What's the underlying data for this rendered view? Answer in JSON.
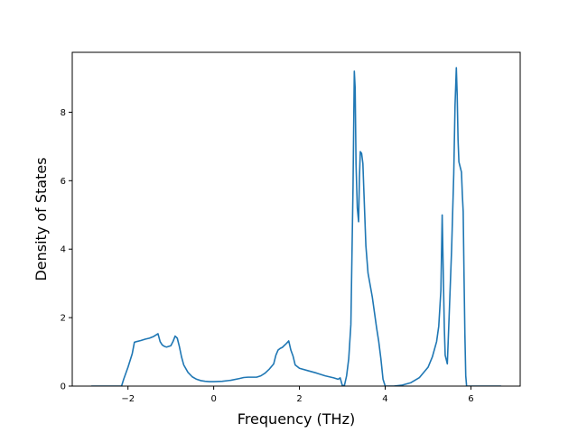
{
  "chart_data": {
    "type": "line",
    "title": "",
    "xlabel": "Frequency (THz)",
    "ylabel": "Density of States",
    "xlim": [
      -3.3,
      7.15
    ],
    "ylim": [
      0,
      9.75
    ],
    "xticks": [
      -2,
      0,
      2,
      4,
      6
    ],
    "yticks": [
      0,
      2,
      4,
      6,
      8
    ],
    "xtick_labels": [
      "−2",
      "0",
      "2",
      "4",
      "6"
    ],
    "ytick_labels": [
      "0",
      "2",
      "4",
      "6",
      "8"
    ],
    "grid": false,
    "legend": null,
    "series": [
      {
        "color": "#1f77b4",
        "x": [
          -2.85,
          -2.5,
          -2.15,
          -2.1,
          -2.0,
          -1.9,
          -1.85,
          -1.8,
          -1.7,
          -1.6,
          -1.5,
          -1.4,
          -1.3,
          -1.25,
          -1.2,
          -1.15,
          -1.1,
          -1.0,
          -0.95,
          -0.9,
          -0.85,
          -0.8,
          -0.75,
          -0.7,
          -0.6,
          -0.5,
          -0.4,
          -0.3,
          -0.2,
          -0.1,
          0.0,
          0.2,
          0.4,
          0.6,
          0.7,
          0.8,
          0.9,
          1.0,
          1.1,
          1.2,
          1.3,
          1.4,
          1.45,
          1.5,
          1.55,
          1.6,
          1.7,
          1.75,
          1.8,
          1.85,
          1.9,
          2.0,
          2.2,
          2.4,
          2.6,
          2.8,
          2.9,
          2.95,
          3.0,
          3.05,
          3.1,
          3.15,
          3.2,
          3.25,
          3.28,
          3.3,
          3.32,
          3.35,
          3.38,
          3.4,
          3.42,
          3.45,
          3.48,
          3.5,
          3.55,
          3.6,
          3.7,
          3.8,
          3.85,
          3.9,
          3.95,
          4.0,
          4.1,
          4.2,
          4.4,
          4.6,
          4.8,
          5.0,
          5.1,
          5.2,
          5.25,
          5.3,
          5.33,
          5.36,
          5.38,
          5.4,
          5.45,
          5.5,
          5.55,
          5.6,
          5.63,
          5.66,
          5.68,
          5.7,
          5.72,
          5.75,
          5.78,
          5.8,
          5.82,
          5.84,
          5.86,
          5.88,
          5.9,
          6.0,
          6.3,
          6.7
        ],
        "y": [
          0,
          0,
          0,
          0.2,
          0.55,
          0.95,
          1.28,
          1.3,
          1.33,
          1.37,
          1.4,
          1.45,
          1.53,
          1.3,
          1.2,
          1.16,
          1.14,
          1.18,
          1.3,
          1.46,
          1.4,
          1.15,
          0.85,
          0.62,
          0.4,
          0.27,
          0.2,
          0.16,
          0.14,
          0.13,
          0.13,
          0.14,
          0.17,
          0.22,
          0.25,
          0.26,
          0.26,
          0.26,
          0.3,
          0.38,
          0.5,
          0.65,
          0.9,
          1.05,
          1.1,
          1.13,
          1.25,
          1.32,
          1.05,
          0.88,
          0.62,
          0.52,
          0.45,
          0.38,
          0.3,
          0.24,
          0.2,
          0.24,
          0.02,
          0.02,
          0.3,
          0.8,
          1.8,
          5.8,
          9.2,
          8.7,
          6.5,
          5.2,
          4.8,
          6.1,
          6.85,
          6.8,
          6.5,
          5.8,
          4.1,
          3.3,
          2.6,
          1.7,
          1.3,
          0.8,
          0.2,
          0,
          0,
          0,
          0.03,
          0.1,
          0.25,
          0.55,
          0.85,
          1.3,
          1.75,
          2.8,
          5.0,
          3.0,
          1.7,
          0.9,
          0.65,
          2.3,
          4.0,
          6.2,
          8.2,
          9.3,
          8.5,
          7.2,
          6.55,
          6.4,
          6.25,
          5.6,
          5.1,
          3.2,
          1.5,
          0.3,
          0,
          0,
          0,
          0
        ]
      }
    ]
  }
}
